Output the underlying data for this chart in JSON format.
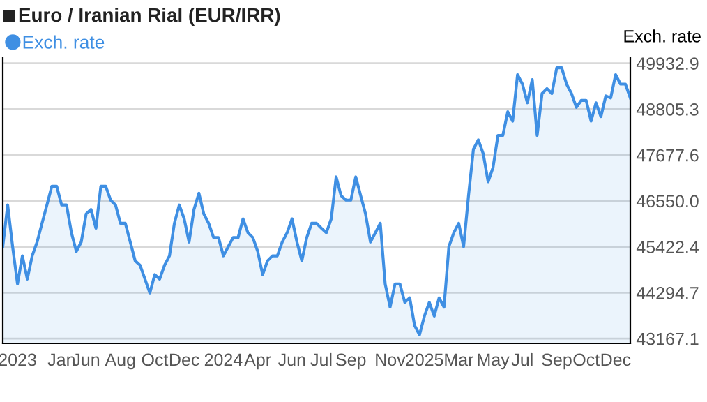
{
  "chart_data": {
    "type": "area",
    "title": "Euro / Iranian Rial (EUR/IRR)",
    "ylabel": "Exch. rate",
    "categories": [
      null,
      null,
      null,
      "2023",
      null,
      null,
      null,
      null,
      null,
      null,
      null,
      null,
      "Jan",
      null,
      null,
      null,
      null,
      "Jun",
      null,
      null,
      null,
      null,
      null,
      null,
      "Aug",
      null,
      null,
      null,
      null,
      null,
      null,
      "Oct",
      null,
      null,
      null,
      null,
      null,
      "Dec",
      null,
      null,
      null,
      null,
      null,
      null,
      null,
      "2024",
      null,
      null,
      null,
      null,
      null,
      null,
      "Apr",
      null,
      null,
      null,
      null,
      null,
      null,
      "Jun",
      null,
      null,
      null,
      null,
      null,
      "Jul",
      null,
      null,
      null,
      null,
      null,
      "Sep",
      null,
      null,
      null,
      null,
      null,
      null,
      null,
      "Nov",
      null,
      null,
      null,
      null,
      null,
      null,
      "2025",
      null,
      null,
      null,
      null,
      null,
      null,
      "Mar",
      null,
      null,
      null,
      null,
      null,
      null,
      "May",
      null,
      null,
      null,
      null,
      null,
      "Jul",
      null,
      null,
      null,
      null,
      null,
      null,
      "Sep",
      null,
      null,
      null,
      null,
      null,
      "Oct",
      null,
      null,
      null,
      null,
      null,
      "Dec",
      null,
      null,
      null
    ],
    "series": [
      {
        "name": "Exch. rate",
        "color": "#3f8fe3",
        "values": [
          45430,
          46450,
          45430,
          44510,
          45200,
          44630,
          45200,
          45540,
          46000,
          46450,
          46910,
          46910,
          46450,
          46450,
          45770,
          45310,
          45540,
          46230,
          46340,
          45880,
          46910,
          46910,
          46570,
          46450,
          46000,
          46000,
          45540,
          45080,
          44970,
          44630,
          44290,
          44740,
          44630,
          44970,
          45200,
          46000,
          46450,
          46110,
          45540,
          46340,
          46740,
          46230,
          46000,
          45650,
          45650,
          45200,
          45430,
          45650,
          45650,
          46110,
          45770,
          45650,
          45310,
          44740,
          45080,
          45200,
          45200,
          45540,
          45770,
          46110,
          45540,
          45080,
          45650,
          46000,
          46000,
          45880,
          45770,
          46110,
          47140,
          46680,
          46570,
          46570,
          47140,
          46680,
          46230,
          45540,
          45770,
          46000,
          44510,
          43940,
          44510,
          44510,
          44060,
          44170,
          43490,
          43260,
          43720,
          44060,
          43720,
          44170,
          43940,
          45430,
          45770,
          46000,
          45430,
          46680,
          47820,
          48050,
          47710,
          47020,
          47370,
          48160,
          48160,
          48740,
          48510,
          49650,
          49420,
          48960,
          49530,
          48160,
          49190,
          49310,
          49190,
          49820,
          49820,
          49420,
          49190,
          48850,
          49020,
          49020,
          48510,
          48960,
          48620,
          49130,
          49080,
          49650,
          49420,
          49420,
          49080
        ]
      }
    ],
    "ylim": [
      43050,
      50080
    ],
    "yticks": [
      {
        "value": 43167.1,
        "label": "43167.1"
      },
      {
        "value": 44294.7,
        "label": "44294.7"
      },
      {
        "value": 45422.4,
        "label": "45422.4"
      },
      {
        "value": 46550.0,
        "label": "46550.0"
      },
      {
        "value": 47677.6,
        "label": "47677.6"
      },
      {
        "value": 48805.3,
        "label": "48805.3"
      },
      {
        "value": 49932.9,
        "label": "49932.9"
      }
    ],
    "grid": "y",
    "legend": "top left",
    "marker": "none",
    "line_style": "solid"
  }
}
